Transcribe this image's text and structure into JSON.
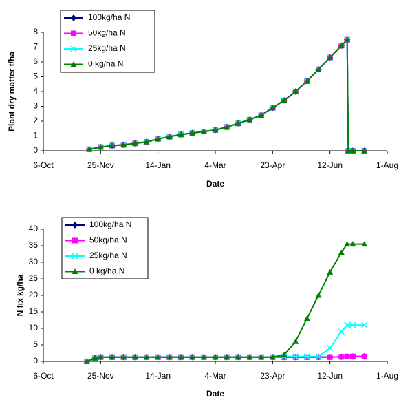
{
  "chart_data": [
    {
      "type": "line",
      "xlabel": "Date",
      "ylabel": "Plant dry matter t/ha",
      "x": [
        40,
        50,
        60,
        70,
        80,
        90,
        100,
        110,
        120,
        130,
        140,
        150,
        160,
        170,
        180,
        190,
        200,
        210,
        220,
        230,
        240,
        250,
        260,
        265,
        266,
        270,
        280
      ],
      "xlim": [
        0,
        300
      ],
      "xticks": [
        {
          "value": 0,
          "label": "6-Oct"
        },
        {
          "value": 50,
          "label": "25-Nov"
        },
        {
          "value": 100,
          "label": "14-Jan"
        },
        {
          "value": 150,
          "label": "4-Mar"
        },
        {
          "value": 200,
          "label": "23-Apr"
        },
        {
          "value": 250,
          "label": "12-Jun"
        },
        {
          "value": 300,
          "label": "1-Aug"
        }
      ],
      "ylim": [
        0,
        8
      ],
      "yticks": [
        0,
        1,
        2,
        3,
        4,
        5,
        6,
        7,
        8
      ],
      "legend": "upper left",
      "series": [
        {
          "name": "100kg/ha N",
          "color": "#000080",
          "marker": "diamond",
          "values": [
            0.1,
            0.25,
            0.35,
            0.4,
            0.5,
            0.6,
            0.8,
            0.95,
            1.1,
            1.2,
            1.3,
            1.4,
            1.6,
            1.85,
            2.1,
            2.4,
            2.9,
            3.4,
            4.0,
            4.7,
            5.5,
            6.3,
            7.1,
            7.5,
            0,
            0,
            0
          ]
        },
        {
          "name": "50kg/ha N",
          "color": "#ff00ff",
          "marker": "square",
          "values": [
            0.1,
            0.25,
            0.35,
            0.4,
            0.5,
            0.6,
            0.8,
            0.95,
            1.1,
            1.2,
            1.3,
            1.4,
            1.6,
            1.85,
            2.1,
            2.4,
            2.9,
            3.4,
            4.0,
            4.7,
            5.5,
            6.3,
            7.1,
            7.5,
            0,
            0,
            0
          ]
        },
        {
          "name": "25kg/ha N",
          "color": "#00ffff",
          "marker": "x",
          "values": [
            0.1,
            0.25,
            0.35,
            0.4,
            0.5,
            0.6,
            0.8,
            0.95,
            1.1,
            1.2,
            1.3,
            1.4,
            1.6,
            1.85,
            2.1,
            2.4,
            2.9,
            3.4,
            4.0,
            4.7,
            5.5,
            6.3,
            7.1,
            7.5,
            0,
            0,
            0
          ]
        },
        {
          "name": "0 kg/ha N",
          "color": "#008000",
          "marker": "triangle",
          "values": [
            0.1,
            0.25,
            0.35,
            0.4,
            0.5,
            0.6,
            0.8,
            0.95,
            1.1,
            1.2,
            1.3,
            1.4,
            1.6,
            1.85,
            2.1,
            2.4,
            2.9,
            3.4,
            4.0,
            4.7,
            5.5,
            6.3,
            7.1,
            7.5,
            0,
            0,
            0
          ]
        }
      ]
    },
    {
      "type": "line",
      "xlabel": "Date",
      "ylabel": "N fix kg/ha",
      "x": [
        38,
        45,
        50,
        60,
        70,
        80,
        90,
        100,
        110,
        120,
        130,
        140,
        150,
        160,
        170,
        180,
        190,
        200,
        210,
        220,
        230,
        240,
        250,
        260,
        265,
        270,
        280
      ],
      "xlim": [
        0,
        300
      ],
      "xticks": [
        {
          "value": 0,
          "label": "6-Oct"
        },
        {
          "value": 50,
          "label": "25-Nov"
        },
        {
          "value": 100,
          "label": "14-Jan"
        },
        {
          "value": 150,
          "label": "4-Mar"
        },
        {
          "value": 200,
          "label": "23-Apr"
        },
        {
          "value": 250,
          "label": "12-Jun"
        },
        {
          "value": 300,
          "label": "1-Aug"
        }
      ],
      "ylim": [
        0,
        40
      ],
      "yticks": [
        0,
        5,
        10,
        15,
        20,
        25,
        30,
        35,
        40
      ],
      "legend": "upper left",
      "series": [
        {
          "name": "100kg/ha N",
          "color": "#000080",
          "marker": "diamond",
          "values": [
            0,
            1,
            1.3,
            1.3,
            1.3,
            1.3,
            1.3,
            1.3,
            1.3,
            1.3,
            1.3,
            1.3,
            1.3,
            1.3,
            1.3,
            1.3,
            1.3,
            1.3,
            1.3,
            1.3,
            1.3,
            1.3,
            1.3,
            1.4,
            1.5,
            1.5,
            1.5
          ]
        },
        {
          "name": "50kg/ha N",
          "color": "#ff00ff",
          "marker": "square",
          "values": [
            0,
            1,
            1.3,
            1.3,
            1.3,
            1.3,
            1.3,
            1.3,
            1.3,
            1.3,
            1.3,
            1.3,
            1.3,
            1.3,
            1.3,
            1.3,
            1.3,
            1.3,
            1.3,
            1.3,
            1.3,
            1.3,
            1.3,
            1.4,
            1.5,
            1.5,
            1.5
          ]
        },
        {
          "name": "25kg/ha N",
          "color": "#00ffff",
          "marker": "x",
          "values": [
            0,
            1,
            1.3,
            1.3,
            1.3,
            1.3,
            1.3,
            1.3,
            1.3,
            1.3,
            1.3,
            1.3,
            1.3,
            1.3,
            1.3,
            1.3,
            1.3,
            1.3,
            1.5,
            1.5,
            1.5,
            1.5,
            4,
            9,
            11,
            11,
            11
          ]
        },
        {
          "name": "0 kg/ha N",
          "color": "#008000",
          "marker": "triangle",
          "values": [
            0,
            1,
            1.3,
            1.3,
            1.3,
            1.3,
            1.3,
            1.3,
            1.3,
            1.3,
            1.3,
            1.3,
            1.3,
            1.3,
            1.3,
            1.3,
            1.3,
            1.3,
            2,
            6,
            13,
            20,
            27,
            33,
            35.5,
            35.5,
            35.5
          ]
        }
      ]
    }
  ]
}
